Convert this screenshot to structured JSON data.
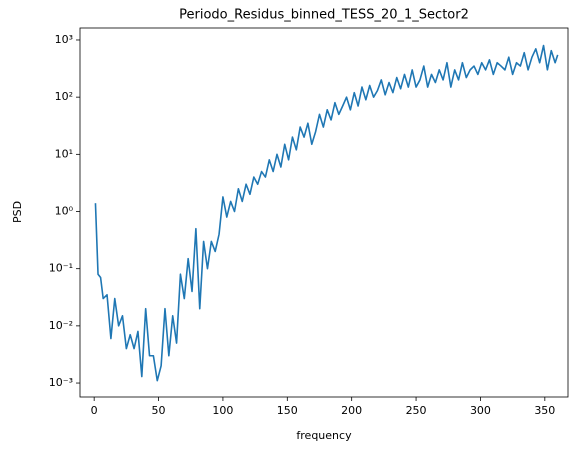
{
  "chart_data": {
    "type": "line",
    "title": "Periodo_Residus_binned_TESS_20_1_Sector2",
    "xlabel": "frequency",
    "ylabel": "PSD",
    "yscale": "log",
    "grid": false,
    "xlim": [
      -11,
      368
    ],
    "xticks": [
      0,
      50,
      100,
      150,
      200,
      250,
      300,
      350
    ],
    "ylim": [
      0.00057,
      1620
    ],
    "yticks": [
      {
        "value": 0.001,
        "label": "10⁻³"
      },
      {
        "value": 0.01,
        "label": "10⁻²"
      },
      {
        "value": 0.1,
        "label": "10⁻¹"
      },
      {
        "value": 1,
        "label": "10⁰"
      },
      {
        "value": 10,
        "label": "10¹"
      },
      {
        "value": 100,
        "label": "10²"
      },
      {
        "value": 1000,
        "label": "10³"
      }
    ],
    "color": "#1f77b4",
    "x": [
      1,
      3,
      5,
      7,
      10,
      13,
      16,
      19,
      22,
      25,
      28,
      31,
      34,
      37,
      40,
      43,
      46,
      49,
      52,
      55,
      58,
      61,
      64,
      67,
      70,
      73,
      76,
      79,
      82,
      85,
      88,
      91,
      94,
      97,
      100,
      103,
      106,
      109,
      112,
      115,
      118,
      121,
      124,
      127,
      130,
      133,
      136,
      139,
      142,
      145,
      148,
      151,
      154,
      157,
      160,
      163,
      166,
      169,
      172,
      175,
      178,
      181,
      184,
      187,
      190,
      193,
      196,
      199,
      202,
      205,
      208,
      211,
      214,
      217,
      220,
      223,
      226,
      229,
      232,
      235,
      238,
      241,
      244,
      247,
      250,
      253,
      256,
      259,
      262,
      265,
      268,
      271,
      274,
      277,
      280,
      283,
      286,
      289,
      292,
      295,
      298,
      301,
      304,
      307,
      310,
      313,
      316,
      319,
      322,
      325,
      328,
      331,
      334,
      337,
      340,
      343,
      346,
      349,
      352,
      355,
      358,
      360
    ],
    "values": [
      1.4,
      0.08,
      0.07,
      0.03,
      0.035,
      0.006,
      0.03,
      0.01,
      0.015,
      0.004,
      0.007,
      0.004,
      0.008,
      0.0013,
      0.02,
      0.003,
      0.003,
      0.0011,
      0.002,
      0.02,
      0.003,
      0.015,
      0.005,
      0.08,
      0.03,
      0.15,
      0.04,
      0.5,
      0.02,
      0.3,
      0.1,
      0.3,
      0.2,
      0.4,
      1.8,
      0.8,
      1.5,
      1.0,
      2.5,
      1.5,
      3,
      2,
      4,
      3,
      5,
      4,
      8,
      5,
      10,
      6,
      15,
      8,
      20,
      12,
      30,
      20,
      35,
      15,
      25,
      50,
      30,
      60,
      40,
      80,
      50,
      70,
      100,
      60,
      120,
      70,
      150,
      90,
      160,
      100,
      130,
      200,
      110,
      180,
      120,
      220,
      140,
      250,
      150,
      300,
      150,
      200,
      350,
      150,
      250,
      180,
      300,
      200,
      400,
      150,
      300,
      200,
      400,
      220,
      300,
      350,
      250,
      400,
      300,
      450,
      250,
      400,
      350,
      300,
      500,
      250,
      400,
      350,
      600,
      300,
      500,
      700,
      400,
      800,
      300,
      650,
      400,
      550
    ]
  }
}
